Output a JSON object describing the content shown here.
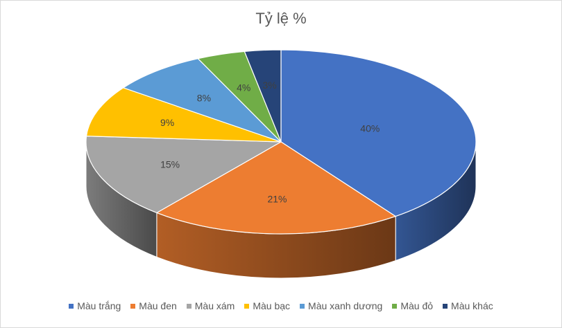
{
  "chart_data": {
    "type": "pie",
    "style": "3d",
    "title": "Tỷ lệ %",
    "categories": [
      "Màu trắng",
      "Màu đen",
      "Màu xám",
      "Màu bạc",
      "Màu xanh dương",
      "Màu đỏ",
      "Màu khác"
    ],
    "values": [
      40,
      21,
      15,
      9,
      8,
      4,
      3
    ],
    "data_labels": [
      "40%",
      "21%",
      "15%",
      "9%",
      "8%",
      "4%",
      "3%"
    ],
    "colors": [
      "#4472c4",
      "#ed7d31",
      "#a5a5a5",
      "#ffc000",
      "#5b9bd5",
      "#70ad47",
      "#264478"
    ],
    "legend_position": "bottom"
  }
}
